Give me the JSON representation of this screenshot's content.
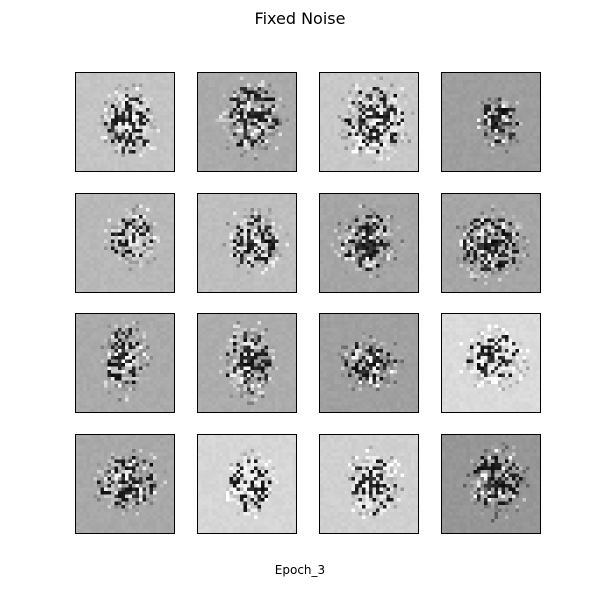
{
  "figure": {
    "title": "Fixed Noise",
    "caption": "Epoch_3"
  },
  "samples": [
    {
      "background_gray": 196
    },
    {
      "background_gray": 170
    },
    {
      "background_gray": 200
    },
    {
      "background_gray": 158
    },
    {
      "background_gray": 184
    },
    {
      "background_gray": 190
    },
    {
      "background_gray": 165
    },
    {
      "background_gray": 165
    },
    {
      "background_gray": 170
    },
    {
      "background_gray": 172
    },
    {
      "background_gray": 160
    },
    {
      "background_gray": 218
    },
    {
      "background_gray": 168
    },
    {
      "background_gray": 214
    },
    {
      "background_gray": 208
    },
    {
      "background_gray": 150
    }
  ]
}
